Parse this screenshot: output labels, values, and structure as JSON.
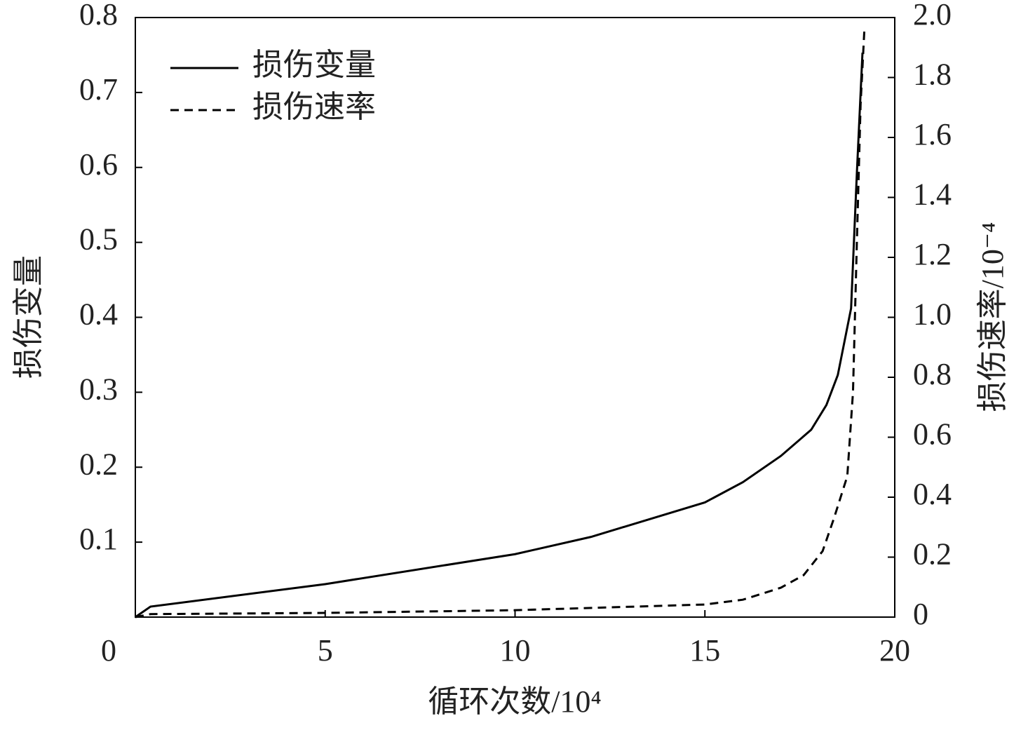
{
  "chart_data": {
    "type": "line",
    "xlabel": "循环次数/10⁴",
    "ylabel": "损伤变量",
    "y2label": "损伤速率/10⁻⁴",
    "xlim": [
      0,
      20
    ],
    "xticks": [
      0,
      5,
      10,
      15,
      20
    ],
    "ylim": [
      0,
      0.8
    ],
    "yticks": [
      0.1,
      0.2,
      0.3,
      0.4,
      0.5,
      0.6,
      0.7,
      0.8
    ],
    "y2lim": [
      0,
      2.0
    ],
    "y2ticks": [
      0,
      0.2,
      0.4,
      0.6,
      0.8,
      {
        "value": 1.0,
        "label": "1.0"
      },
      1.2,
      1.4,
      1.6,
      1.8,
      {
        "value": 2.0,
        "label": "2.0"
      }
    ],
    "legend": "upper left",
    "series": [
      {
        "name": "损伤变量",
        "color": "#000000",
        "dash": "solid",
        "x": [
          0,
          0.4,
          5,
          10,
          12,
          15,
          16,
          17,
          17.8,
          18.2,
          18.5,
          18.85,
          19.0,
          19.15
        ],
        "values": [
          0,
          0.014,
          0.044,
          0.084,
          0.107,
          0.153,
          0.18,
          0.215,
          0.25,
          0.283,
          0.323,
          0.412,
          0.59,
          0.753
        ]
      },
      {
        "name": "损伤速率",
        "color": "#000000",
        "dash": "dashed",
        "axis": "y2",
        "x": [
          0,
          0.4,
          5,
          10,
          15,
          16,
          17,
          17.6,
          18.1,
          18.4,
          18.75,
          18.9,
          19.0,
          19.1,
          19.2
        ],
        "values": [
          0,
          0.01,
          0.014,
          0.023,
          0.042,
          0.058,
          0.098,
          0.14,
          0.22,
          0.33,
          0.47,
          0.75,
          1.24,
          1.71,
          1.96
        ]
      }
    ]
  }
}
